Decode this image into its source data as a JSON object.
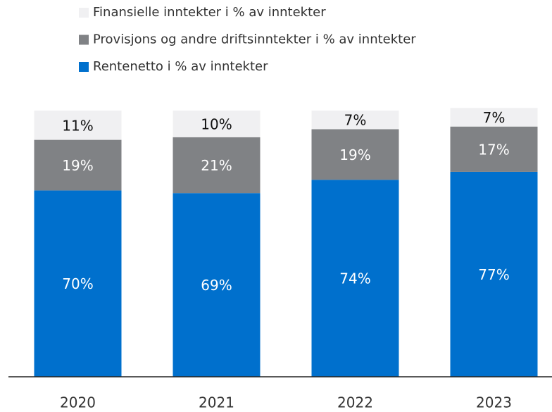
{
  "chart_data": {
    "type": "stacked_bar",
    "categories": [
      "2020",
      "2021",
      "2022",
      "2023"
    ],
    "series": [
      {
        "name": "Rentenetto i % av inntekter",
        "color": "#0070cd",
        "values": [
          70,
          69,
          74,
          77
        ],
        "value_labels": [
          "70%",
          "69%",
          "74%",
          "77%"
        ]
      },
      {
        "name": "Provisjons og andre driftsinntekter i % av inntekter",
        "color": "#808285",
        "values": [
          19,
          21,
          19,
          17
        ],
        "value_labels": [
          "19%",
          "21%",
          "19%",
          "17%"
        ]
      },
      {
        "name": "Finansielle inntekter i % av inntekter",
        "color": "#f0f0f2",
        "values": [
          11,
          10,
          7,
          7
        ],
        "value_labels": [
          "11%",
          "10%",
          "7%",
          "7%"
        ]
      }
    ],
    "ylim": [
      0,
      100
    ]
  }
}
